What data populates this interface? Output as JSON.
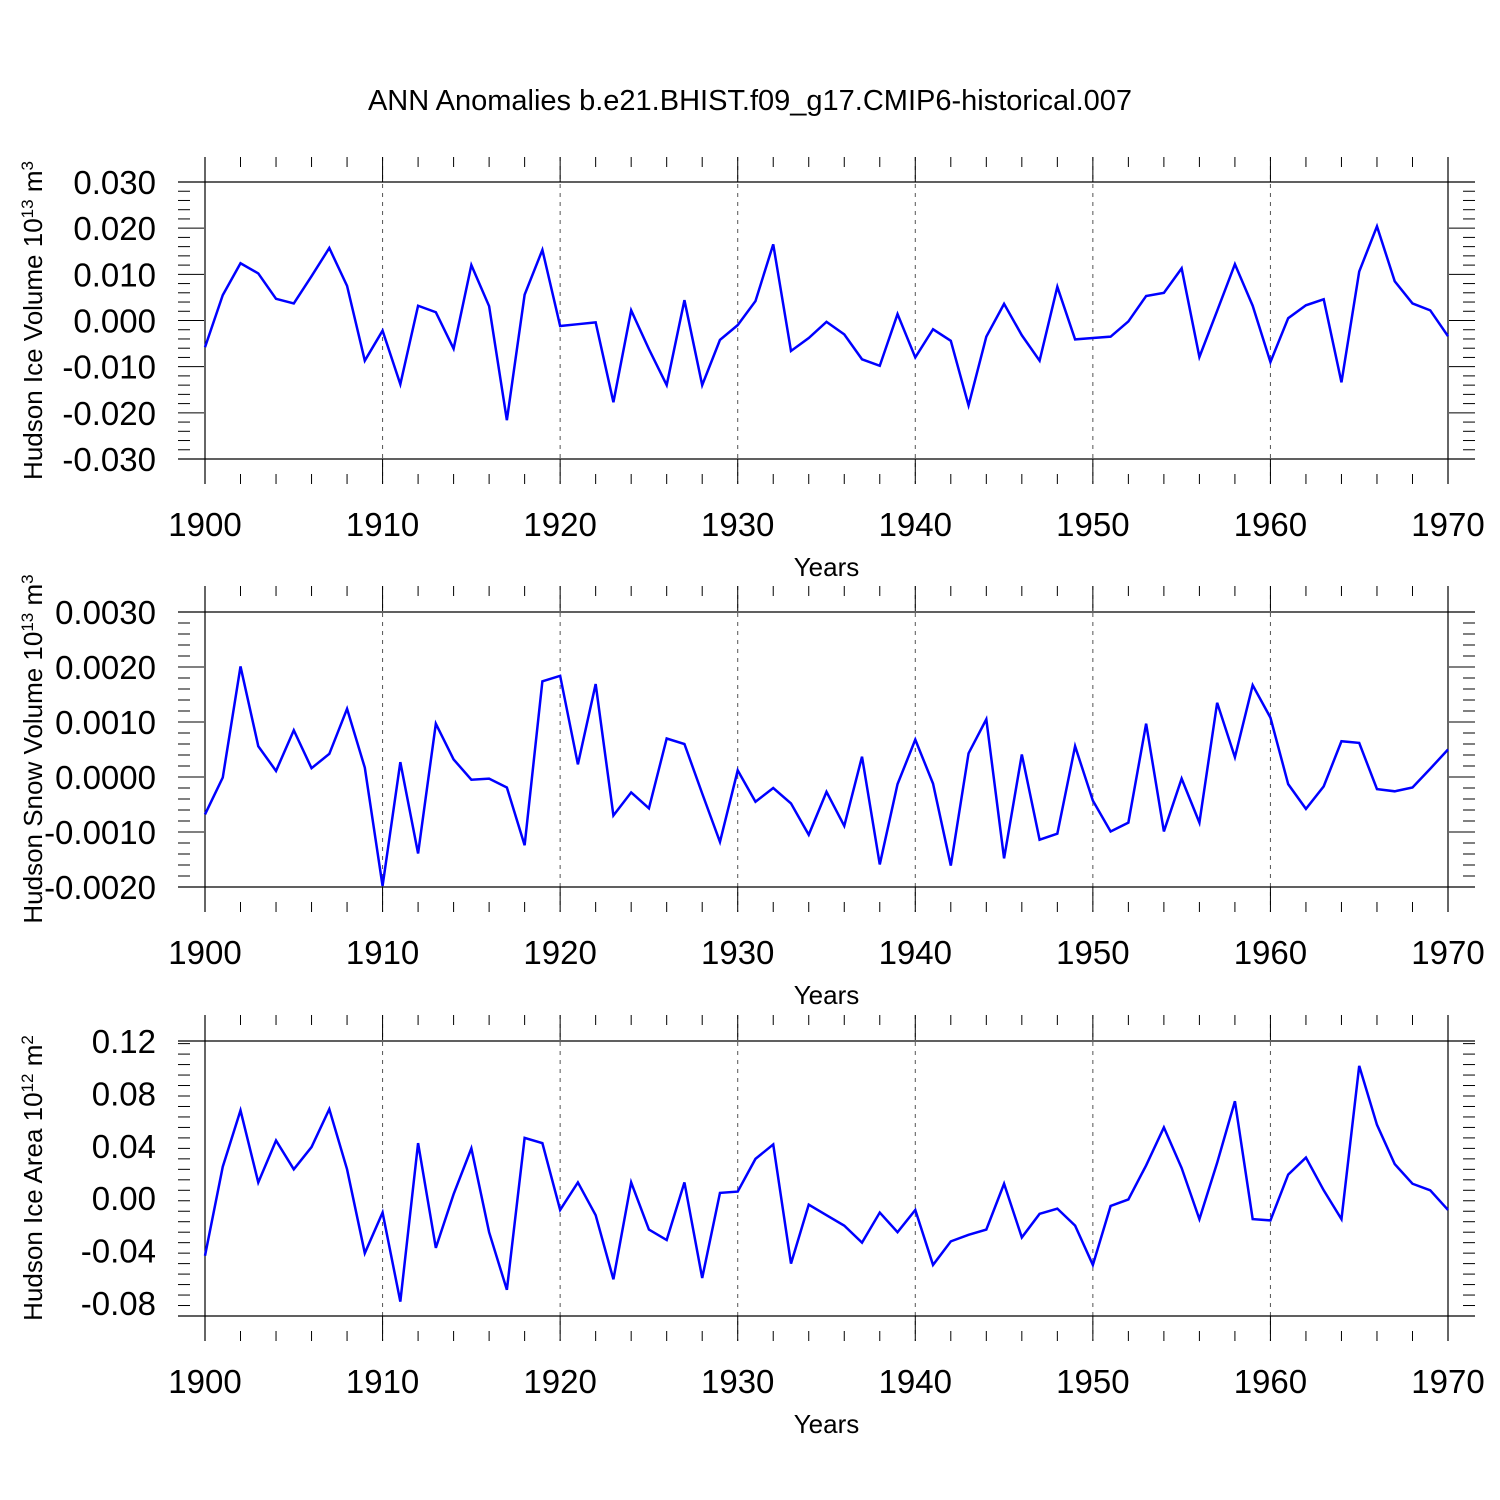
{
  "title": "ANN Anomalies b.e21.BHIST.f09_g17.CMIP6-historical.007",
  "chart_data": [
    {
      "type": "line",
      "title": "",
      "ylabel": "Hudson Ice Volume 10",
      "ylabel_exp": "13",
      "ylabel_unit": " m",
      "ylabel_unit_exp": "3",
      "xlabel": "Years",
      "xlim": [
        1900,
        1970
      ],
      "ylim": [
        -0.03,
        0.03
      ],
      "xticks": [
        1900,
        1910,
        1920,
        1930,
        1940,
        1950,
        1960,
        1970
      ],
      "xtick_labels": [
        "1900",
        "1910",
        "1920",
        "1930",
        "1940",
        "1950",
        "1960",
        "1970"
      ],
      "yticks": [
        -0.03,
        -0.02,
        -0.01,
        0.0,
        0.01,
        0.02,
        0.03
      ],
      "ytick_labels": [
        "-0.030",
        "-0.020",
        "-0.010",
        "0.000",
        "0.010",
        "0.020",
        "0.030"
      ],
      "grid_x": [
        1910,
        1920,
        1930,
        1940,
        1950,
        1960
      ],
      "series": [
        {
          "name": "Hudson Ice Volume",
          "color": "#0000ff",
          "x": [
            1900,
            1901,
            1902,
            1903,
            1904,
            1905,
            1906,
            1907,
            1908,
            1909,
            1910,
            1911,
            1912,
            1913,
            1914,
            1915,
            1916,
            1917,
            1918,
            1919,
            1920,
            1921,
            1922,
            1923,
            1924,
            1925,
            1926,
            1927,
            1928,
            1929,
            1930,
            1931,
            1932,
            1933,
            1934,
            1935,
            1936,
            1937,
            1938,
            1939,
            1940,
            1941,
            1942,
            1943,
            1944,
            1945,
            1946,
            1947,
            1948,
            1949,
            1950,
            1951,
            1952,
            1953,
            1954,
            1955,
            1956,
            1957,
            1958,
            1959,
            1960,
            1961,
            1962,
            1963,
            1964,
            1965,
            1966,
            1967,
            1968,
            1969,
            1970
          ],
          "values": [
            -0.0058,
            0.0055,
            0.0124,
            0.0102,
            0.0047,
            0.0037,
            0.0096,
            0.0157,
            0.0075,
            -0.0087,
            -0.0022,
            -0.0138,
            0.0032,
            0.0018,
            -0.0061,
            0.012,
            0.0031,
            -0.0216,
            0.0056,
            0.0153,
            -0.0012,
            -0.0008,
            -0.0004,
            -0.0177,
            0.0022,
            -0.0062,
            -0.014,
            0.0044,
            -0.014,
            -0.0042,
            -0.001,
            0.0042,
            0.0165,
            -0.0066,
            -0.0038,
            -0.0003,
            -0.003,
            -0.0084,
            -0.0098,
            0.0014,
            -0.008,
            -0.0019,
            -0.0044,
            -0.0184,
            -0.0035,
            0.0036,
            -0.0032,
            -0.0087,
            0.0073,
            -0.0041,
            -0.0038,
            -0.0035,
            -0.0002,
            0.0053,
            0.006,
            0.0113,
            -0.0079,
            0.0021,
            0.0122,
            0.0032,
            -0.009,
            0.0005,
            0.0033,
            0.0046,
            -0.0134,
            0.0106,
            0.0204,
            0.0085,
            0.0037,
            0.0022,
            -0.0034
          ]
        }
      ]
    },
    {
      "type": "line",
      "title": "",
      "ylabel": "Hudson Snow Volume 10",
      "ylabel_exp": "13",
      "ylabel_unit": " m",
      "ylabel_unit_exp": "3",
      "xlabel": "Years",
      "xlim": [
        1900,
        1970
      ],
      "ylim": [
        -0.002,
        0.003
      ],
      "xticks": [
        1900,
        1910,
        1920,
        1930,
        1940,
        1950,
        1960,
        1970
      ],
      "xtick_labels": [
        "1900",
        "1910",
        "1920",
        "1930",
        "1940",
        "1950",
        "1960",
        "1970"
      ],
      "yticks": [
        -0.002,
        -0.001,
        0.0,
        0.001,
        0.002,
        0.003
      ],
      "ytick_labels": [
        "-0.0020",
        "-0.0010",
        "0.0000",
        "0.0010",
        "0.0020",
        "0.0030"
      ],
      "grid_x": [
        1910,
        1920,
        1930,
        1940,
        1950,
        1960
      ],
      "series": [
        {
          "name": "Hudson Snow Volume",
          "color": "#0000ff",
          "x": [
            1900,
            1901,
            1902,
            1903,
            1904,
            1905,
            1906,
            1907,
            1908,
            1909,
            1910,
            1911,
            1912,
            1913,
            1914,
            1915,
            1916,
            1917,
            1918,
            1919,
            1920,
            1921,
            1922,
            1923,
            1924,
            1925,
            1926,
            1927,
            1928,
            1929,
            1930,
            1931,
            1932,
            1933,
            1934,
            1935,
            1936,
            1937,
            1938,
            1939,
            1940,
            1941,
            1942,
            1943,
            1944,
            1945,
            1946,
            1947,
            1948,
            1949,
            1950,
            1951,
            1952,
            1953,
            1954,
            1955,
            1956,
            1957,
            1958,
            1959,
            1960,
            1961,
            1962,
            1963,
            1964,
            1965,
            1966,
            1967,
            1968,
            1969,
            1970
          ],
          "values": [
            -0.00068,
            -1e-05,
            0.00201,
            0.00056,
            0.00011,
            0.00085,
            0.00016,
            0.00042,
            0.00124,
            0.00017,
            -0.00198,
            0.00027,
            -0.00139,
            0.00097,
            0.00032,
            -5e-05,
            -3e-05,
            -0.00019,
            -0.00124,
            0.00174,
            0.00184,
            0.00023,
            0.00169,
            -0.0007,
            -0.00028,
            -0.00057,
            0.0007,
            0.0006,
            -0.0003,
            -0.00118,
            0.00012,
            -0.00045,
            -0.0002,
            -0.00048,
            -0.00105,
            -0.00027,
            -0.00089,
            0.00037,
            -0.00159,
            -0.00013,
            0.00068,
            -0.00012,
            -0.00161,
            0.00043,
            0.00105,
            -0.00148,
            0.00041,
            -0.00114,
            -0.00103,
            0.00056,
            -0.00043,
            -0.00099,
            -0.00083,
            0.00097,
            -0.00099,
            -3e-05,
            -0.00083,
            0.00135,
            0.00036,
            0.00167,
            0.00108,
            -0.00013,
            -0.00058,
            -0.00017,
            0.00065,
            0.00062,
            -0.00022,
            -0.00026,
            -0.00019,
            0.00015,
            0.0005
          ]
        }
      ]
    },
    {
      "type": "line",
      "title": "",
      "ylabel": "Hudson Ice Area 10",
      "ylabel_exp": "12",
      "ylabel_unit": " m",
      "ylabel_unit_exp": "2",
      "xlabel": "Years",
      "xlim": [
        1900,
        1970
      ],
      "ylim": [
        -0.09,
        0.12
      ],
      "xticks": [
        1900,
        1910,
        1920,
        1930,
        1940,
        1950,
        1960,
        1970
      ],
      "xtick_labels": [
        "1900",
        "1910",
        "1920",
        "1930",
        "1940",
        "1950",
        "1960",
        "1970"
      ],
      "yticks": [
        -0.08,
        -0.04,
        0.0,
        0.04,
        0.08,
        0.12
      ],
      "ytick_labels": [
        "-0.08",
        "-0.04",
        "0.00",
        "0.04",
        "0.08",
        "0.12"
      ],
      "grid_x": [
        1910,
        1920,
        1930,
        1940,
        1950,
        1960
      ],
      "series": [
        {
          "name": "Hudson Ice Area",
          "color": "#0000ff",
          "x": [
            1900,
            1901,
            1902,
            1903,
            1904,
            1905,
            1906,
            1907,
            1908,
            1909,
            1910,
            1911,
            1912,
            1913,
            1914,
            1915,
            1916,
            1917,
            1918,
            1919,
            1920,
            1921,
            1922,
            1923,
            1924,
            1925,
            1926,
            1927,
            1928,
            1929,
            1930,
            1931,
            1932,
            1933,
            1934,
            1935,
            1936,
            1937,
            1938,
            1939,
            1940,
            1941,
            1942,
            1943,
            1944,
            1945,
            1946,
            1947,
            1948,
            1949,
            1950,
            1951,
            1952,
            1953,
            1954,
            1955,
            1956,
            1957,
            1958,
            1959,
            1960,
            1961,
            1962,
            1963,
            1964,
            1965,
            1966,
            1967,
            1968,
            1969,
            1970
          ],
          "values": [
            -0.044,
            0.024,
            0.067,
            0.012,
            0.044,
            0.022,
            0.039,
            0.068,
            0.022,
            -0.042,
            -0.011,
            -0.079,
            0.042,
            -0.038,
            0.003,
            0.038,
            -0.026,
            -0.07,
            0.046,
            0.042,
            -0.009,
            0.012,
            -0.013,
            -0.062,
            0.012,
            -0.024,
            -0.032,
            0.012,
            -0.061,
            0.004,
            0.005,
            0.03,
            0.041,
            -0.05,
            -0.005,
            -0.013,
            -0.021,
            -0.034,
            -0.011,
            -0.026,
            -0.009,
            -0.051,
            -0.033,
            -0.028,
            -0.024,
            0.011,
            -0.03,
            -0.012,
            -0.008,
            -0.021,
            -0.051,
            -0.006,
            -0.001,
            0.025,
            0.054,
            0.023,
            -0.016,
            0.027,
            0.074,
            -0.016,
            -0.017,
            0.018,
            0.031,
            0.006,
            -0.016,
            0.101,
            0.056,
            0.026,
            0.011,
            0.006,
            -0.009
          ]
        }
      ]
    }
  ]
}
